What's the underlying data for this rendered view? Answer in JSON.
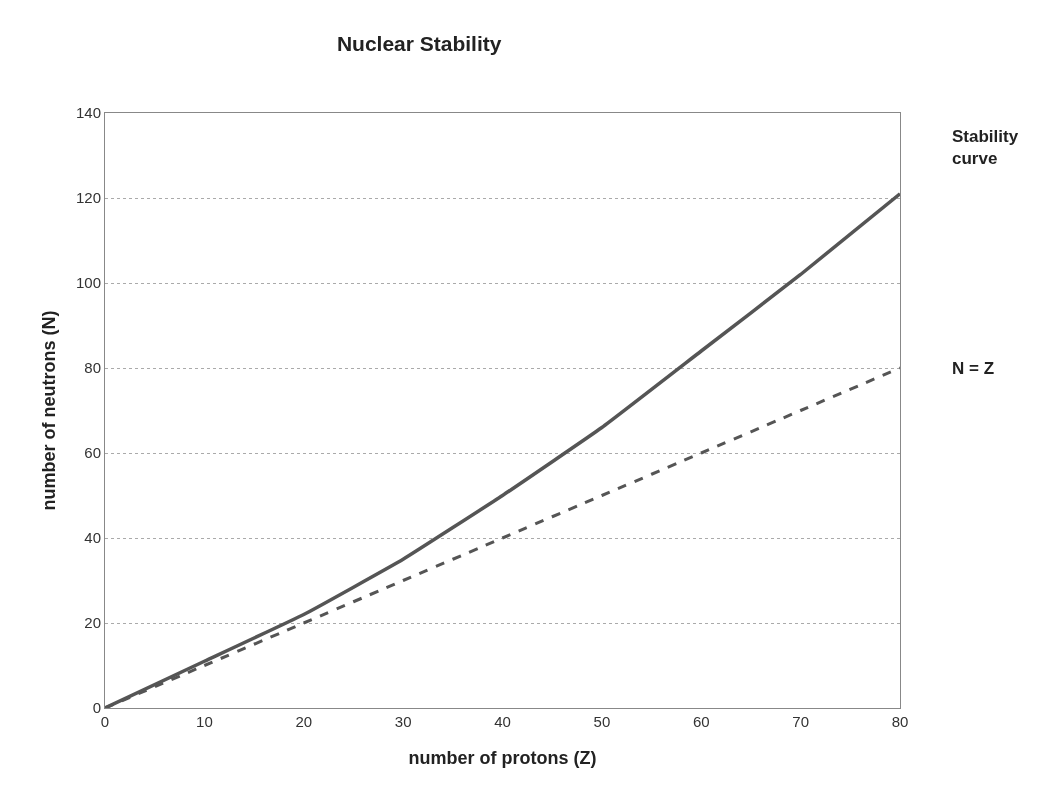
{
  "chart_data": {
    "type": "line",
    "title": "Nuclear Stability",
    "xlabel": "number of protons (Z)",
    "ylabel": "number of neutrons (N)",
    "x": [
      0,
      10,
      20,
      30,
      40,
      50,
      60,
      70,
      80
    ],
    "series": [
      {
        "name": "Stability curve",
        "color": "#555555",
        "line_style": "solid",
        "values": [
          0,
          11,
          22,
          35,
          50,
          66,
          84,
          102,
          121
        ]
      },
      {
        "name": "N = Z",
        "color": "#555555",
        "line_style": "dashed",
        "values": [
          0,
          10,
          20,
          30,
          40,
          50,
          60,
          70,
          80
        ]
      }
    ],
    "xlim": [
      0,
      80
    ],
    "xticks": [
      0,
      10,
      20,
      30,
      40,
      50,
      60,
      70,
      80
    ],
    "ylim": [
      0,
      140
    ],
    "yticks": [
      0,
      20,
      40,
      60,
      80,
      100,
      120,
      140
    ],
    "grid": "y",
    "legend": false,
    "marker": "none"
  }
}
